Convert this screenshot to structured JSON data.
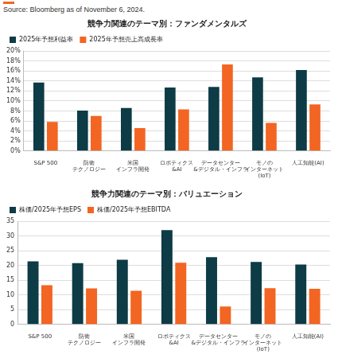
{
  "source": "Source: Bloomberg as of November 6, 2024.",
  "chart_data": [
    {
      "type": "bar",
      "title": "競争力関連のテーマ別：ファンダメンタルズ",
      "categories": [
        "S&P 500",
        "防衛\nテクノロジー",
        "米国\nインフラ開発",
        "ロボティクス\n&AI",
        "データセンター\n&デジタル・インフラ",
        "モノの\nインターネット\n(IoT)",
        "人工知能(AI)"
      ],
      "series": [
        {
          "name": "2025年予想利益率",
          "color": "#0d3b46",
          "values": [
            13.7,
            8.1,
            8.6,
            12.7,
            12.8,
            14.7,
            16.2
          ]
        },
        {
          "name": "2025年予想売上高成長率",
          "color": "#f26522",
          "values": [
            5.8,
            7.0,
            4.6,
            8.3,
            17.3,
            5.6,
            9.3
          ]
        }
      ],
      "ylim": [
        0,
        20
      ],
      "yticks": [
        {
          "value": 0,
          "label": "0%"
        },
        {
          "value": 2,
          "label": "2%"
        },
        {
          "value": 4,
          "label": "4%"
        },
        {
          "value": 6,
          "label": "6%"
        },
        {
          "value": 8,
          "label": "8%"
        },
        {
          "value": 10,
          "label": "10%"
        },
        {
          "value": 12,
          "label": "12%"
        },
        {
          "value": 14,
          "label": "14%"
        },
        {
          "value": 16,
          "label": "16%"
        },
        {
          "value": 18,
          "label": "18%"
        },
        {
          "value": 20,
          "label": "20%"
        }
      ],
      "grid": true,
      "legend": "upper left"
    },
    {
      "type": "bar",
      "title": "競争力関連のテーマ別：バリュエーション",
      "categories": [
        "S&P 500",
        "防衛\nテクノロジー",
        "米国\nインフラ開発",
        "ロボティクス\n&AI",
        "データセンター\n&デジタル・インフラ",
        "モノの\nインターネット\n(IoT)",
        "人工知能(AI)"
      ],
      "series": [
        {
          "name": "株価/2025年予想EPS",
          "color": "#0d3b46",
          "values": [
            21.4,
            20.8,
            21.9,
            32.0,
            22.8,
            21.2,
            20.3
          ]
        },
        {
          "name": "株価/2025年予想EBITDA",
          "color": "#f26522",
          "values": [
            13.3,
            12.2,
            11.4,
            20.9,
            6.1,
            12.3,
            12.1
          ]
        }
      ],
      "ylim": [
        0,
        35
      ],
      "yticks": [
        0,
        5,
        10,
        15,
        20,
        25,
        30,
        35
      ],
      "grid": true,
      "legend": "upper left"
    }
  ]
}
